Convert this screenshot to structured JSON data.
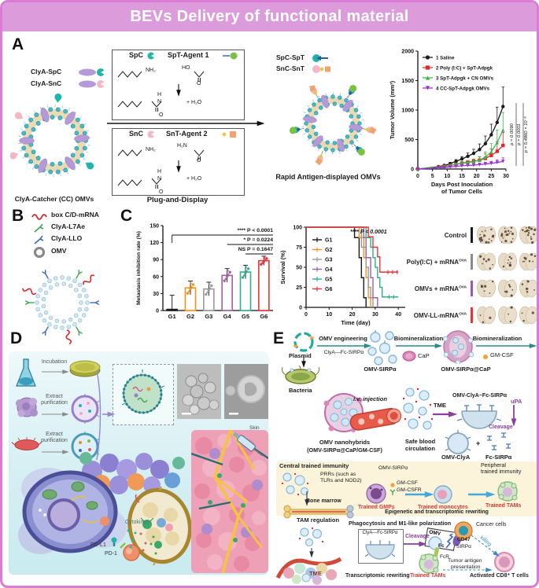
{
  "title": "BEVs Delivery of  functional material",
  "panelA": {
    "label": "A",
    "legend_left": [
      {
        "label": "ClyA-SpC"
      },
      {
        "label": "ClyA-SnC"
      }
    ],
    "omv_caption_left": "ClyA-Catcher (CC) OMVs",
    "box1": {
      "partner": "SpC",
      "agent": "SpT-Agent 1",
      "nh2": "NH₂",
      "ho": "HO",
      "o": "O",
      "h": "H",
      "n": "N",
      "water": "+ H₂O"
    },
    "box2": {
      "partner": "SnC",
      "agent": "SnT-Agent 2",
      "nh2": "NH₂",
      "h2n": "H₂N",
      "o": "O",
      "h": "H",
      "n": "N",
      "water": "+ H₂O"
    },
    "process_caption": "Plug-and-Display",
    "legend_right": [
      {
        "label": "SpC-SpT"
      },
      {
        "label": "SnC-SnT"
      }
    ],
    "omv_caption_right": "Rapid Antigen-displayed OMVs"
  },
  "panelB": {
    "label": "B",
    "legend": [
      {
        "label": "box C/D-mRNA"
      },
      {
        "label": "ClyA-L7Ae"
      },
      {
        "label": "ClyA-LLO"
      },
      {
        "label": "OMV"
      }
    ]
  },
  "panelC": {
    "label": "C",
    "lung_rows": [
      {
        "label": "Control",
        "sup": "",
        "bar_color": "#1a1a1a",
        "speckles": 16
      },
      {
        "label": "Poly(I:C) + mRNA",
        "sup": "OVA",
        "bar_color": "#8a8a8a",
        "speckles": 8
      },
      {
        "label": "OMVs + mRNA",
        "sup": "OVA",
        "bar_color": "#9b59b6",
        "speckles": 6
      },
      {
        "label": "OMV-LL-mRNA",
        "sup": "OVA",
        "bar_color": "#ed3237",
        "speckles": 3
      }
    ]
  },
  "panelD": {
    "label": "D",
    "steps": [
      {
        "label": "Incubation"
      },
      {
        "label": "Extract purification"
      },
      {
        "label": "Extract purification"
      }
    ],
    "annotations": {
      "cytokines": "Cytokines",
      "pdl1": "PD-L1",
      "pd1": "PD-1",
      "skin": "Skin"
    }
  },
  "panelE": {
    "label": "E",
    "row1": {
      "plasmid": "Plasmid",
      "arrow1": "OMV engineering",
      "arrow1_sub": "ClyA—Fc-SIRPα",
      "omv_sirpa": "OMV-SIRPα",
      "arrow2": "Biomineralization",
      "cap": "CaP",
      "omv_cap": "OMV-SIRPα@CaP",
      "arrow3": "Biomineralization",
      "gmcsf": "GM-CSF"
    },
    "row2": {
      "bacteria": "Bacteria",
      "nano1": "OMV nanohybrids",
      "nano2": "(OMV-SIRPα@CaP/GM-CSF)",
      "iv": "i.v. injection",
      "safe1": "Safe blood",
      "safe2": "circulation",
      "tme": "TME",
      "complex": "OMV-ClyA~Fc-SIRPα",
      "upa": "uPA",
      "cleavage": "Cleavage",
      "omv_clya": "OMV-ClyA",
      "plus": "+",
      "fc_sirpa": "Fc-SIRPα"
    },
    "row3": {
      "title": "Central trained immunity",
      "prrs1": "PRRs (such as",
      "prrs2": "TLRs and NOD2)",
      "omv_sirpa": "OMV-SIRPα",
      "gmcsf": "GM-CSF",
      "gmcsfr": "GM-CSFR",
      "bone": "Bone marrow",
      "gmps": "Trained GMPs",
      "monocytes": "Trained monocytes",
      "tams": "Trained TAMs",
      "rewriting": "Epigenetic and transcriptomic rewriting",
      "peripheral1": "Peripheral",
      "peripheral2": "trained immunity"
    },
    "row4": {
      "title": "TAM regulation",
      "phago": "Phagocytosis and M1-like polarization",
      "clya_box": "ClyA—Fc-SIRPα",
      "cleavage": "Cleavage",
      "omv": "OMV",
      "fc": "Fc",
      "cd47": "CD47",
      "sirpa": "SIRPα",
      "fcr": "FcR",
      "cancer": "Cancer cells",
      "killing": "killing",
      "tme": "TME",
      "tams": "Trained TAMs",
      "rewriting": "Transcriptomic rewriting",
      "antigen1": "Tumor antigen",
      "antigen2": "presentation",
      "cd8": "Activated CD8⁺ T cells"
    }
  },
  "chart_data": [
    {
      "type": "line",
      "ylabel": "Tumor Volume (mm³)",
      "xlabel": [
        "Days Post Inoculation",
        "of Tumor Cells"
      ],
      "xlim": [
        0,
        30
      ],
      "ylim": [
        0,
        2000
      ],
      "xticks": [
        0,
        5,
        10,
        15,
        20,
        25,
        30
      ],
      "yticks": [
        0,
        500,
        1000,
        1500,
        2000
      ],
      "x": [
        0,
        7,
        9,
        11,
        13,
        15,
        17,
        19,
        21,
        23,
        25,
        27,
        29
      ],
      "series": [
        {
          "name": "1 Saline",
          "color": "#1a1a1a",
          "marker": "circle",
          "values": [
            0,
            40,
            60,
            90,
            130,
            170,
            215,
            265,
            330,
            430,
            580,
            790,
            1060
          ],
          "errors": [
            0,
            15,
            18,
            22,
            30,
            40,
            55,
            70,
            95,
            130,
            180,
            260,
            330
          ]
        },
        {
          "name": "2 Poly (I:C) + SpT-Adpgk",
          "color": "#e8262a",
          "marker": "square",
          "values": [
            0,
            30,
            45,
            60,
            80,
            100,
            115,
            130,
            150,
            180,
            230,
            300,
            400
          ],
          "errors": [
            0,
            10,
            12,
            15,
            20,
            25,
            30,
            40,
            55,
            75,
            110,
            160,
            220
          ]
        },
        {
          "name": "3 SpT-Adpgk + CN OMVs",
          "color": "#39b54a",
          "marker": "triangle",
          "values": [
            0,
            30,
            45,
            60,
            80,
            95,
            110,
            125,
            150,
            200,
            290,
            450,
            660
          ],
          "errors": [
            0,
            10,
            12,
            15,
            20,
            25,
            30,
            40,
            60,
            90,
            140,
            210,
            300
          ]
        },
        {
          "name": "4 CC-SpT-Adpgk OMVs",
          "color": "#9b30d9",
          "marker": "triangle-down",
          "values": [
            0,
            15,
            25,
            35,
            45,
            55,
            60,
            65,
            75,
            85,
            95,
            110,
            130
          ],
          "errors": [
            0,
            5,
            8,
            10,
            12,
            15,
            18,
            20,
            25,
            30,
            35,
            45,
            60
          ]
        }
      ],
      "annotations": [
        "p = 0.0090",
        "p = 0.0001",
        "p = 5.4860 × 10⁻⁵"
      ]
    },
    {
      "type": "bar",
      "ylabel": "Metastasis inhibition rate (%)",
      "categories": [
        "G1",
        "G2",
        "G3",
        "G4",
        "G5",
        "G6"
      ],
      "values": [
        2,
        40,
        38,
        62,
        68,
        88
      ],
      "errors": [
        25,
        12,
        12,
        12,
        12,
        8
      ],
      "colors": [
        "#1a1a1a",
        "#f5921e",
        "#9a9a9a",
        "#a05fa8",
        "#2fb08a",
        "#ed3237"
      ],
      "ylim": [
        0,
        150
      ],
      "yticks": [
        0,
        30,
        60,
        90,
        120,
        150
      ],
      "annotations": [
        {
          "text": "**** P < 0.0001",
          "from": 0
        },
        {
          "text": "* P = 0.0224",
          "from": 3
        },
        {
          "text": "NS P = 0.1647",
          "from": 4
        }
      ]
    },
    {
      "type": "step",
      "ylabel": "Survival (%)",
      "xlabel": "Time (day)",
      "xlim": [
        0,
        43
      ],
      "ylim": [
        0,
        100
      ],
      "xticks": [
        0,
        10,
        20,
        30,
        40
      ],
      "yticks": [
        0,
        25,
        50,
        75,
        100
      ],
      "annotation": "**** P < 0.0001",
      "series": [
        {
          "name": "G1",
          "color": "#1a1a1a",
          "points": [
            [
              0,
              100
            ],
            [
              21,
              100
            ],
            [
              21,
              87
            ],
            [
              23,
              87
            ],
            [
              23,
              62
            ],
            [
              24,
              62
            ],
            [
              24,
              37
            ],
            [
              25,
              37
            ],
            [
              25,
              12
            ],
            [
              26,
              12
            ],
            [
              26,
              0
            ]
          ]
        },
        {
          "name": "G2",
          "color": "#f5921e",
          "points": [
            [
              0,
              100
            ],
            [
              23,
              100
            ],
            [
              23,
              87
            ],
            [
              25,
              87
            ],
            [
              25,
              62
            ],
            [
              26,
              62
            ],
            [
              26,
              37
            ],
            [
              27,
              37
            ],
            [
              27,
              12
            ],
            [
              28,
              12
            ],
            [
              28,
              0
            ]
          ]
        },
        {
          "name": "G3",
          "color": "#9a9a9a",
          "points": [
            [
              0,
              100
            ],
            [
              24,
              100
            ],
            [
              24,
              75
            ],
            [
              26,
              75
            ],
            [
              26,
              50
            ],
            [
              27,
              50
            ],
            [
              27,
              25
            ],
            [
              28,
              25
            ],
            [
              28,
              12
            ],
            [
              29,
              12
            ],
            [
              29,
              0
            ]
          ]
        },
        {
          "name": "G4",
          "color": "#a05fa8",
          "points": [
            [
              0,
              100
            ],
            [
              25,
              100
            ],
            [
              25,
              87
            ],
            [
              26,
              87
            ],
            [
              26,
              62
            ],
            [
              28,
              62
            ],
            [
              28,
              37
            ],
            [
              29,
              37
            ],
            [
              29,
              12
            ],
            [
              31,
              12
            ],
            [
              31,
              0
            ]
          ]
        },
        {
          "name": "G5",
          "color": "#2fb08a",
          "points": [
            [
              0,
              100
            ],
            [
              26,
              100
            ],
            [
              26,
              87
            ],
            [
              28,
              87
            ],
            [
              28,
              75
            ],
            [
              29,
              75
            ],
            [
              29,
              62
            ],
            [
              30,
              62
            ],
            [
              30,
              50
            ],
            [
              31,
              50
            ],
            [
              31,
              37
            ],
            [
              32,
              37
            ],
            [
              32,
              25
            ],
            [
              33,
              25
            ],
            [
              33,
              13
            ],
            [
              40,
              13
            ]
          ],
          "censors": [
            [
              36,
              13
            ],
            [
              38,
              13
            ]
          ]
        },
        {
          "name": "G6",
          "color": "#ed3237",
          "points": [
            [
              0,
              100
            ],
            [
              27,
              100
            ],
            [
              27,
              88
            ],
            [
              29,
              88
            ],
            [
              29,
              75
            ],
            [
              31,
              75
            ],
            [
              31,
              63
            ],
            [
              32,
              63
            ],
            [
              32,
              44
            ],
            [
              34,
              44
            ],
            [
              40,
              44
            ]
          ],
          "censors": [
            [
              35.5,
              44
            ],
            [
              37.5,
              44
            ],
            [
              39.5,
              44
            ]
          ]
        }
      ]
    }
  ]
}
